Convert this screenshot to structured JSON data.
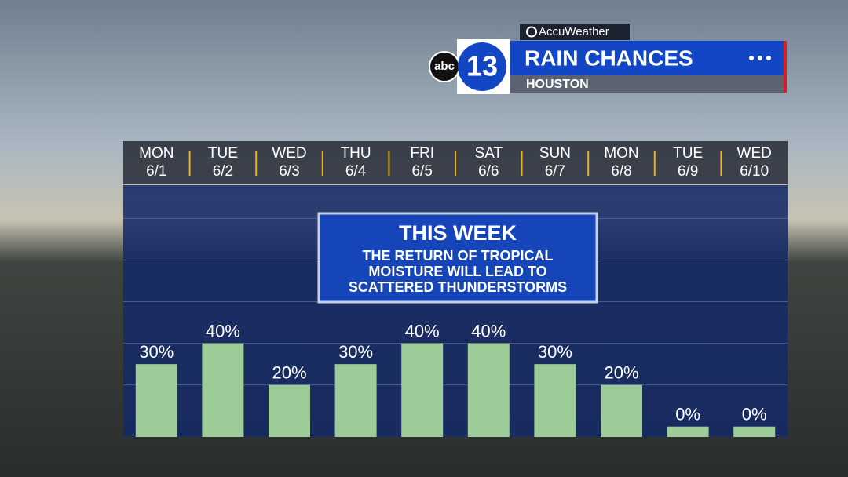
{
  "header": {
    "brand": "AccuWeather",
    "station": "abc",
    "channel": "13",
    "title": "RAIN CHANCES",
    "location": "HOUSTON"
  },
  "chart_data": {
    "type": "bar",
    "categories": [
      "MON",
      "TUE",
      "WED",
      "THU",
      "FRI",
      "SAT",
      "SUN",
      "MON",
      "TUE",
      "WED"
    ],
    "dates": [
      "6/1",
      "6/2",
      "6/3",
      "6/4",
      "6/5",
      "6/6",
      "6/7",
      "6/8",
      "6/9",
      "6/10"
    ],
    "values": [
      30,
      40,
      20,
      30,
      40,
      40,
      30,
      20,
      0,
      0
    ],
    "value_labels": [
      "30%",
      "40%",
      "20%",
      "30%",
      "40%",
      "40%",
      "30%",
      "20%",
      "0%",
      "0%"
    ],
    "color": "#9dcc98",
    "ylim": [
      -5,
      116
    ],
    "gridlines": [
      20,
      40,
      60,
      80,
      100
    ],
    "annotation": {
      "title": "THIS WEEK",
      "lines": [
        "THE RETURN OF TROPICAL",
        "MOISTURE WILL LEAD TO",
        "SCATTERED THUNDERSTORMS"
      ]
    }
  }
}
